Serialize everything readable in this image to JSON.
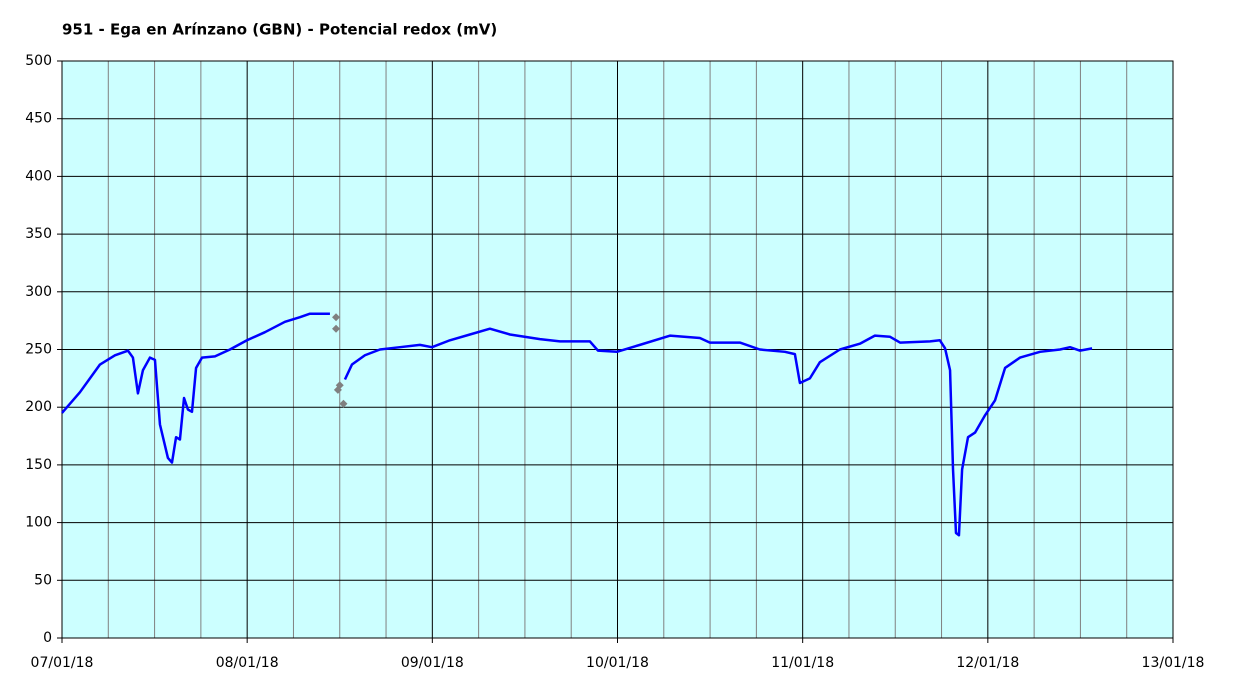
{
  "chart_data": {
    "type": "line",
    "title": "951 - Ega en Arínzano (GBN) - Potencial redox (mV)",
    "xlim": [
      0,
      6
    ],
    "xticks": [
      {
        "value": 0,
        "label": "07/01/18"
      },
      {
        "value": 1,
        "label": "08/01/18"
      },
      {
        "value": 2,
        "label": "09/01/18"
      },
      {
        "value": 3,
        "label": "10/01/18"
      },
      {
        "value": 4,
        "label": "11/01/18"
      },
      {
        "value": 5,
        "label": "12/01/18"
      },
      {
        "value": 6,
        "label": "13/01/18"
      }
    ],
    "ylim": [
      0,
      500
    ],
    "yticks": [
      0,
      50,
      100,
      150,
      200,
      250,
      300,
      350,
      400,
      450,
      500
    ],
    "grid": true,
    "background": "#ccffff",
    "series": [
      {
        "color": "#0000ff",
        "marker": "none",
        "x": [
          0,
          0.097,
          0.205,
          0.286,
          0.356,
          0.383,
          0.41,
          0.437,
          0.475,
          0.502,
          0.529,
          0.572,
          0.594,
          0.616,
          0.637,
          0.659,
          0.68,
          0.702,
          0.724,
          0.756,
          0.826,
          0.907,
          0.999,
          1.096,
          1.204,
          1.285,
          1.339,
          1.447,
          1.47,
          1.528,
          1.566,
          1.636,
          1.717,
          1.825,
          1.933,
          1.998,
          2.095,
          2.203,
          2.311,
          2.419,
          2.581,
          2.689,
          2.851,
          2.895,
          2.997,
          3.121,
          3.283,
          3.445,
          3.499,
          3.661,
          3.769,
          3.904,
          3.958,
          3.985,
          4.039,
          4.093,
          4.201,
          4.309,
          4.39,
          4.472,
          4.526,
          4.688,
          4.741,
          4.769,
          4.796,
          4.812,
          4.828,
          4.844,
          4.861,
          4.893,
          4.931,
          4.985,
          5.039,
          5.093,
          5.174,
          5.282,
          5.39,
          5.444,
          5.498,
          5.563
        ],
        "values": [
          195,
          213,
          237,
          245,
          249,
          243,
          212,
          232,
          243,
          241,
          185,
          156,
          152,
          174,
          172,
          208,
          198,
          196,
          234,
          243,
          244,
          250,
          258,
          265,
          274,
          278,
          281,
          281,
          null,
          224,
          237,
          245,
          250,
          252,
          254,
          252,
          258,
          263,
          268,
          263,
          259,
          257,
          257,
          249,
          248,
          254,
          262,
          260,
          256,
          256,
          250,
          248,
          246,
          221,
          225,
          239,
          250,
          255,
          262,
          261,
          256,
          257,
          258,
          251,
          232,
          146,
          91,
          89,
          146,
          174,
          178,
          193,
          206,
          234,
          243,
          248,
          250,
          252,
          249,
          251
        ]
      },
      {
        "color": "#808080",
        "marker": "diamond",
        "x": [
          1.48,
          1.48,
          1.49,
          1.5,
          1.52
        ],
        "values": [
          278,
          268,
          215,
          219,
          203
        ]
      }
    ]
  }
}
